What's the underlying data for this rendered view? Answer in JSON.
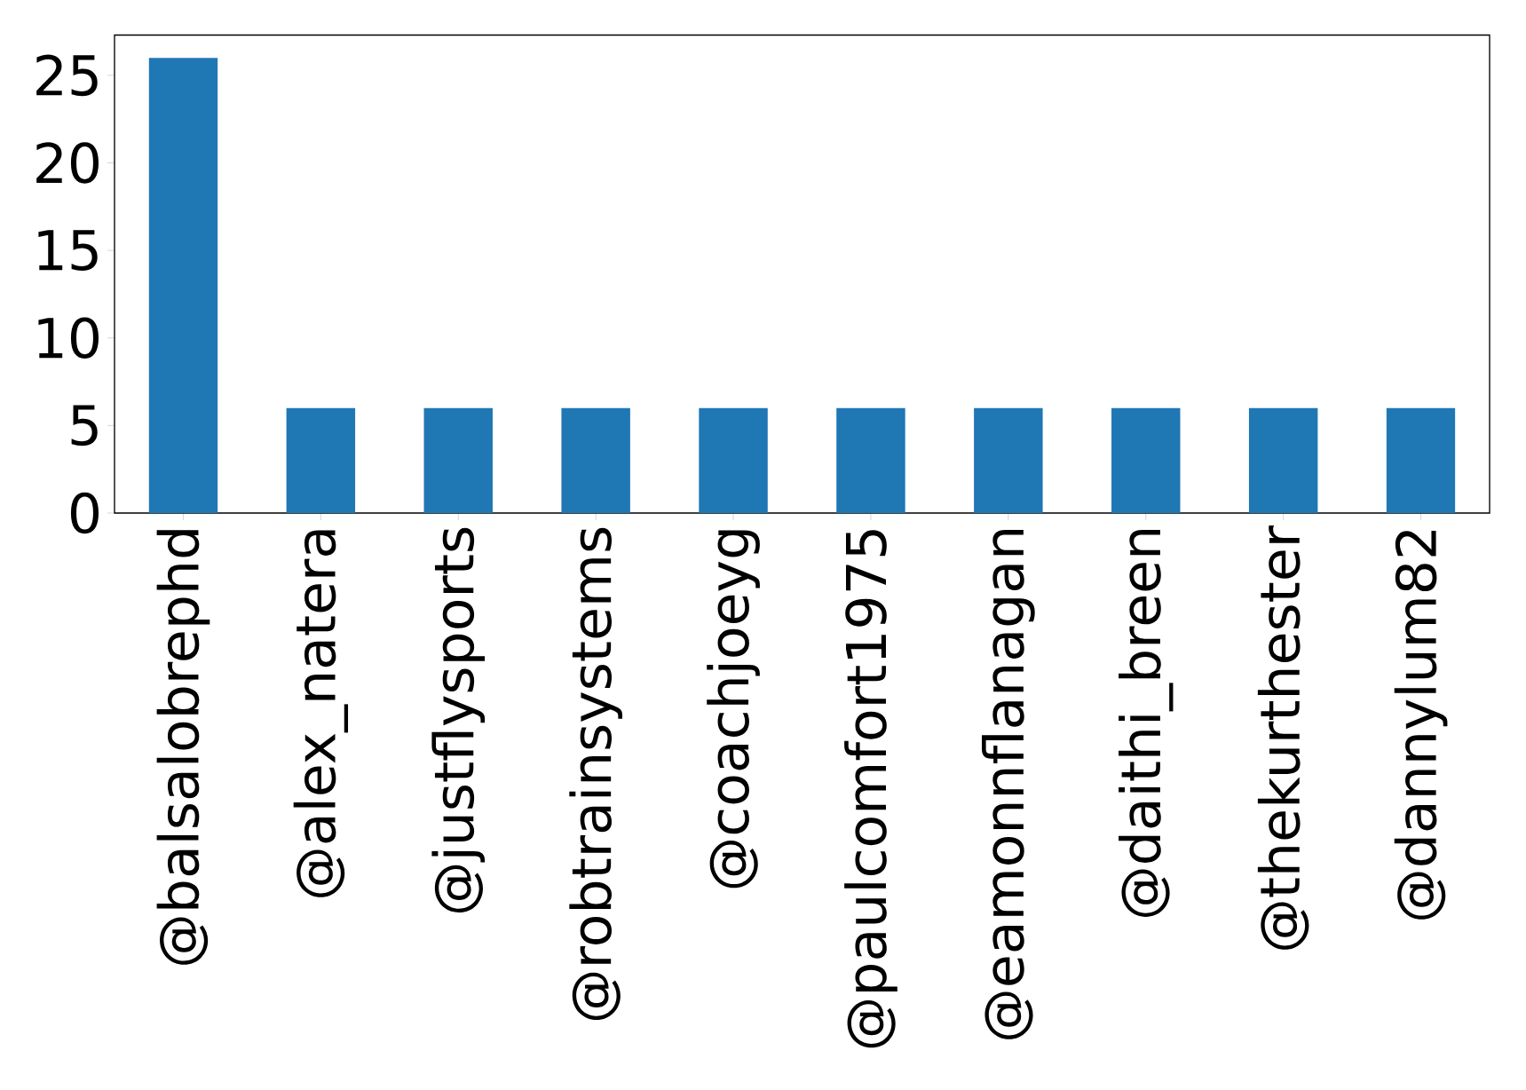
{
  "chart_data": {
    "type": "bar",
    "categories": [
      "@balsalobrephd",
      "@alex_natera",
      "@justflysports",
      "@robtrainsystems",
      "@coachjoeyg",
      "@paulcomfort1975",
      "@eamonnflanagan",
      "@daithi_breen",
      "@thekurthester",
      "@dannylum82"
    ],
    "values": [
      26,
      6,
      6,
      6,
      6,
      6,
      6,
      6,
      6,
      6
    ],
    "color": "#1f77b4",
    "ylim": [
      0,
      27.3
    ],
    "yticks": [
      0,
      5,
      10,
      15,
      20,
      25
    ]
  }
}
